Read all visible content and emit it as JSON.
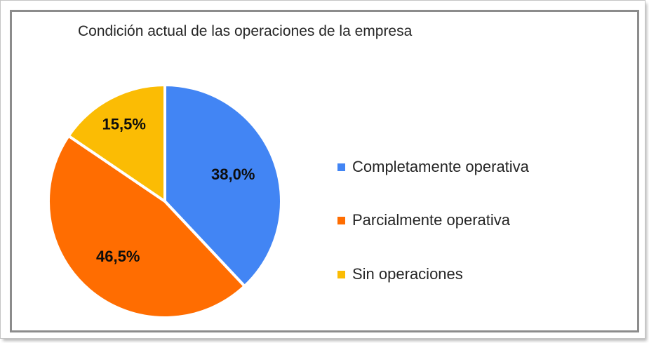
{
  "chart_data": {
    "type": "pie",
    "title": "Condición actual de las operaciones de la empresa",
    "labels": [
      "Completamente operativa",
      "Parcialmente operativa",
      "Sin operaciones"
    ],
    "values": [
      38.0,
      46.5,
      15.5
    ],
    "value_labels": [
      "38,0%",
      "46,5%",
      "15,5%"
    ],
    "colors": [
      "#4285f4",
      "#ff6d01",
      "#fbbc04"
    ],
    "start_angle_deg": 0,
    "direction": "clockwise",
    "legend_position": "right",
    "separator_color": "#ffffff",
    "slice_label_color": "#0d0d0d",
    "title_color": "#262626"
  }
}
